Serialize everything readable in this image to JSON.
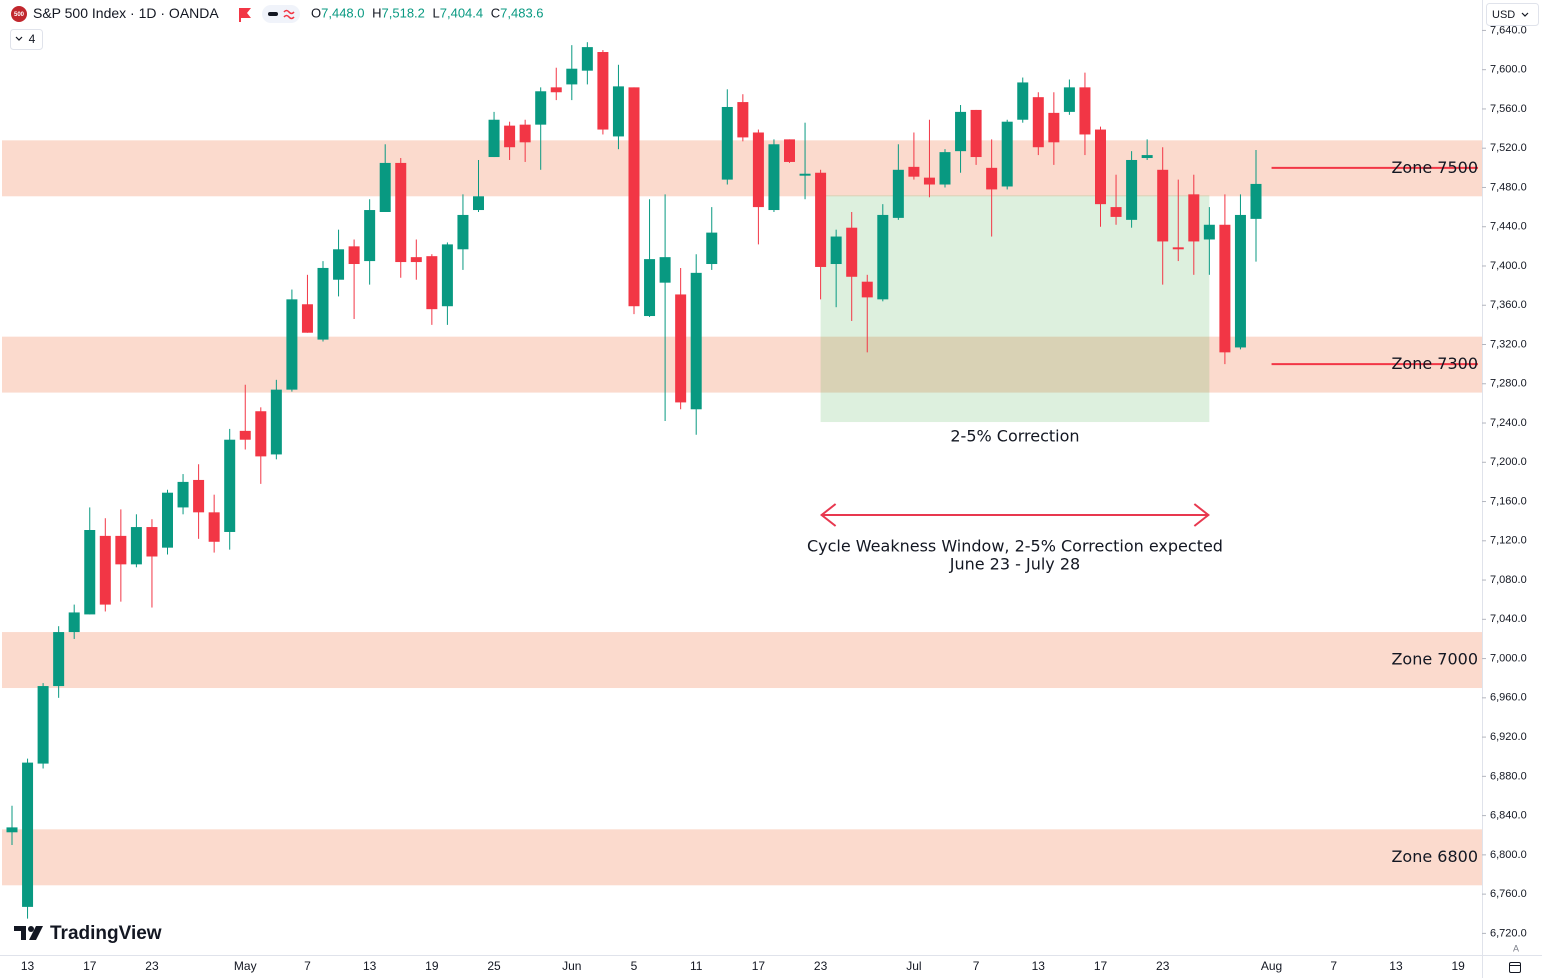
{
  "chart_data": {
    "type": "candlestick",
    "title": "S&P 500 Index · 1D · OANDA",
    "symbol_icon": "500",
    "ohlc_readout": [
      {
        "label": "O",
        "value": "7,448.0"
      },
      {
        "label": "H",
        "value": "7,518.2"
      },
      {
        "label": "L",
        "value": "7,404.4"
      },
      {
        "label": "C",
        "value": "7,483.6"
      }
    ],
    "indicator_count": "4",
    "currency": "USD",
    "brand": "TradingView",
    "scale_mode": "A",
    "up_color": "#089981",
    "down_color": "#f23645",
    "zone_color": "rgba(242,140,100,0.32)",
    "box_color": "rgba(76,175,80,0.19)",
    "grid": false,
    "categories": [
      null,
      "13",
      null,
      null,
      null,
      "17",
      null,
      null,
      null,
      "23",
      null,
      null,
      null,
      null,
      null,
      "May",
      null,
      null,
      null,
      "7",
      null,
      null,
      null,
      "13",
      null,
      null,
      null,
      "19",
      null,
      null,
      null,
      "25",
      null,
      null,
      null,
      null,
      "Jun",
      null,
      null,
      null,
      "5",
      null,
      null,
      null,
      "11",
      null,
      null,
      null,
      "17",
      null,
      null,
      null,
      "23",
      null,
      null,
      null,
      null,
      null,
      "Jul",
      null,
      null,
      null,
      "7",
      null,
      null,
      null,
      "13",
      null,
      null,
      null,
      "17",
      null,
      null,
      null,
      "23",
      null,
      null,
      null,
      null,
      null,
      null,
      "Aug",
      null,
      null,
      null,
      "7",
      null,
      null,
      null,
      "13",
      null,
      null,
      null,
      "19"
    ],
    "open": [
      6823,
      6747,
      6893,
      6972,
      7027,
      7045,
      7125,
      7125,
      7096,
      7134,
      7113,
      7154,
      7182,
      7149,
      7129,
      7232,
      7252,
      7208,
      7274,
      7361,
      7325,
      7386,
      7420,
      7405,
      7455,
      7505,
      7409,
      7410,
      7359,
      7417,
      7457,
      7511,
      7543,
      7544,
      7544,
      7582,
      7585,
      7599,
      7618,
      7532,
      7582,
      7349,
      7383,
      7371,
      7254,
      7402,
      7488,
      7567,
      7536,
      7457,
      7529,
      7492,
      7495,
      7402,
      7439,
      7384,
      7366,
      7449,
      7501,
      7490,
      7483,
      7517,
      7559,
      7500,
      7481,
      7549,
      7572,
      7556,
      7557,
      7582,
      7539,
      7460,
      7447,
      7510,
      7498,
      7419,
      7473,
      7427,
      7442,
      7317,
      7448.0,
      null,
      null,
      null,
      null,
      null,
      null,
      null,
      null,
      null,
      null,
      null,
      null,
      null
    ],
    "high": [
      6850,
      6898,
      6975,
      7033,
      7055,
      7154,
      7143,
      7152,
      7147,
      7142,
      7172,
      7188,
      7198,
      7167,
      7234,
      7279,
      7256,
      7284,
      7376,
      7391,
      7405,
      7437,
      7427,
      7468,
      7524,
      7510,
      7427,
      7412,
      7424,
      7473,
      7508,
      7557,
      7547,
      7549,
      7582,
      7602,
      7625,
      7628,
      7620,
      7605,
      7582,
      7468,
      7473,
      7398,
      7412,
      7460,
      7580,
      7575,
      7539,
      7529,
      7529,
      7546,
      7498,
      7437,
      7455,
      7391,
      7463,
      7524,
      7536,
      7549,
      7519,
      7564,
      7559,
      7529,
      7549,
      7592,
      7577,
      7577,
      7590,
      7597,
      7542,
      7493,
      7517,
      7529,
      7521,
      7488,
      7493,
      7460,
      7473,
      7473,
      7518.2,
      null,
      null,
      null,
      null,
      null,
      null,
      null,
      null,
      null,
      null,
      null,
      null,
      null
    ],
    "low": [
      6810,
      6735,
      6888,
      6960,
      7020,
      7045,
      7048,
      7058,
      7093,
      7052,
      7106,
      7147,
      7122,
      7108,
      7111,
      7213,
      7178,
      7203,
      7272,
      7332,
      7323,
      7369,
      7346,
      7381,
      7455,
      7388,
      7386,
      7340,
      7340,
      7396,
      7455,
      7511,
      7508,
      7506,
      7498,
      7569,
      7569,
      7585,
      7534,
      7519,
      7351,
      7348,
      7242,
      7254,
      7228,
      7396,
      7483,
      7527,
      7422,
      7455,
      7505,
      7468,
      7366,
      7358,
      7344,
      7312,
      7364,
      7447,
      7488,
      7470,
      7480,
      7495,
      7503,
      7430,
      7478,
      7546,
      7513,
      7503,
      7554,
      7513,
      7440,
      7442,
      7439,
      7508,
      7381,
      7405,
      7391,
      7391,
      7300,
      7315,
      7404.4,
      null,
      null,
      null,
      null,
      null,
      null,
      null,
      null,
      null,
      null,
      null,
      null,
      null
    ],
    "close": [
      6828,
      6894,
      6972,
      7027,
      7047,
      7131,
      7055,
      7096,
      7134,
      7104,
      7169,
      7180,
      7149,
      7119,
      7223,
      7223,
      7206,
      7274,
      7366,
      7332,
      7398,
      7417,
      7402,
      7457,
      7505,
      7404,
      7404,
      7356,
      7422,
      7452,
      7471,
      7549,
      7521,
      7526,
      7578,
      7577,
      7601,
      7623,
      7539,
      7583,
      7359,
      7407,
      7409,
      7261,
      7393,
      7434,
      7562,
      7531,
      7460,
      7524,
      7506,
      7494,
      7399,
      7430,
      7389,
      7368,
      7452,
      7498,
      7491,
      7483,
      7516,
      7557,
      7511,
      7478,
      7547,
      7587,
      7521,
      7526,
      7582,
      7534,
      7463,
      7450,
      7508,
      7513,
      7425,
      7417,
      7425,
      7442,
      7312,
      7452,
      7483.6,
      null,
      null,
      null,
      null,
      null,
      null,
      null,
      null,
      null,
      null,
      null,
      null,
      null
    ],
    "ylim": [
      6699,
      7671
    ],
    "yticks": [
      {
        "value": 6720,
        "label": "6,720.0"
      },
      {
        "value": 6760,
        "label": "6,760.0"
      },
      {
        "value": 6800,
        "label": "6,800.0"
      },
      {
        "value": 6840,
        "label": "6,840.0"
      },
      {
        "value": 6880,
        "label": "6,880.0"
      },
      {
        "value": 6920,
        "label": "6,920.0"
      },
      {
        "value": 6960,
        "label": "6,960.0"
      },
      {
        "value": 7000,
        "label": "7,000.0"
      },
      {
        "value": 7040,
        "label": "7,040.0"
      },
      {
        "value": 7080,
        "label": "7,080.0"
      },
      {
        "value": 7120,
        "label": "7,120.0"
      },
      {
        "value": 7160,
        "label": "7,160.0"
      },
      {
        "value": 7200,
        "label": "7,200.0"
      },
      {
        "value": 7240,
        "label": "7,240.0"
      },
      {
        "value": 7280,
        "label": "7,280.0"
      },
      {
        "value": 7320,
        "label": "7,320.0"
      },
      {
        "value": 7360,
        "label": "7,360.0"
      },
      {
        "value": 7400,
        "label": "7,400.0"
      },
      {
        "value": 7440,
        "label": "7,440.0"
      },
      {
        "value": 7480,
        "label": "7,480.0"
      },
      {
        "value": 7520,
        "label": "7,520.0"
      },
      {
        "value": 7560,
        "label": "7,560.0"
      },
      {
        "value": 7600,
        "label": "7,600.0"
      },
      {
        "value": 7640,
        "label": "7,640.0"
      }
    ],
    "zones": [
      {
        "label": "Zone 7500",
        "low": 7471,
        "high": 7528,
        "line": 7500
      },
      {
        "label": "Zone 7300",
        "low": 7271,
        "high": 7328,
        "line": 7300
      },
      {
        "label": "Zone 7000",
        "low": 6970,
        "high": 7027
      },
      {
        "label": "Zone 6800",
        "low": 6769,
        "high": 6826
      }
    ],
    "correction_box": {
      "label": "2-5% Correction",
      "from": 52,
      "to": 77,
      "low": 7241,
      "high": 7472
    },
    "window_annotation": [
      "Cycle Weakness Window, 2-5% Correction expected",
      "June 23 - July 28"
    ]
  }
}
